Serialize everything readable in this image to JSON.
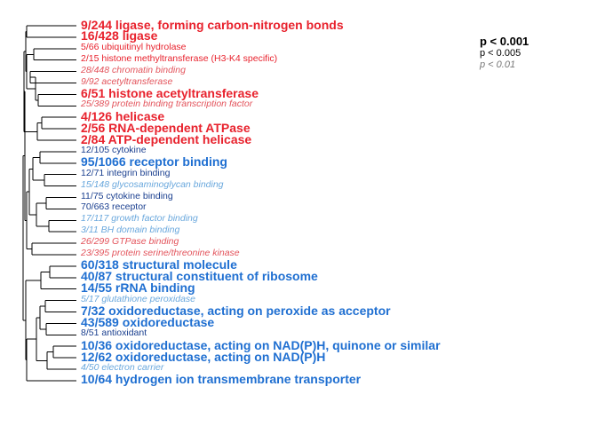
{
  "colors": {
    "red": "#e8222d",
    "red_light": "#e3545c",
    "blue_bold": "#1f6fd1",
    "blue_dark": "#1a3f8f",
    "blue_light": "#6aa8dd"
  },
  "terms": [
    {
      "text": "9/244 ligase, forming carbon-nitrogen bonds",
      "style": "bold",
      "color": "red"
    },
    {
      "text": "16/428 ligase",
      "style": "bold",
      "color": "red"
    },
    {
      "text": "5/66 ubiquitinyl hydrolase",
      "style": "normal",
      "color": "red"
    },
    {
      "text": "2/15 histone methyltransferase (H3-K4 specific)",
      "style": "normal",
      "color": "red"
    },
    {
      "text": "28/448 chromatin binding",
      "style": "italic",
      "color": "red_light"
    },
    {
      "text": "9/92 acetyltransferase",
      "style": "italic",
      "color": "red_light"
    },
    {
      "text": "6/51 histone acetyltransferase",
      "style": "bold",
      "color": "red"
    },
    {
      "text": "25/389 protein binding transcription factor",
      "style": "italic",
      "color": "red_light"
    },
    {
      "text": "4/126 helicase",
      "style": "bold",
      "color": "red"
    },
    {
      "text": "2/56 RNA-dependent ATPase",
      "style": "bold",
      "color": "red"
    },
    {
      "text": "2/84 ATP-dependent helicase",
      "style": "bold",
      "color": "red"
    },
    {
      "text": "12/105 cytokine",
      "style": "normal",
      "color": "blue_dark"
    },
    {
      "text": "95/1066 receptor binding",
      "style": "bold",
      "color": "blue_bold"
    },
    {
      "text": "12/71 integrin binding",
      "style": "normal",
      "color": "blue_dark"
    },
    {
      "text": "15/148 glycosaminoglycan binding",
      "style": "italic",
      "color": "blue_light"
    },
    {
      "text": "11/75 cytokine binding",
      "style": "normal",
      "color": "blue_dark"
    },
    {
      "text": "70/663 receptor",
      "style": "normal",
      "color": "blue_dark"
    },
    {
      "text": "17/117 growth factor binding",
      "style": "italic",
      "color": "blue_light"
    },
    {
      "text": "3/11 BH domain binding",
      "style": "italic",
      "color": "blue_light"
    },
    {
      "text": "26/299 GTPase binding",
      "style": "italic",
      "color": "red_light"
    },
    {
      "text": "23/395 protein serine/threonine kinase",
      "style": "italic",
      "color": "red_light"
    },
    {
      "text": "60/318 structural molecule",
      "style": "bold",
      "color": "blue_bold"
    },
    {
      "text": "40/87 structural constituent of ribosome",
      "style": "bold",
      "color": "blue_bold"
    },
    {
      "text": "14/55 rRNA binding",
      "style": "bold",
      "color": "blue_bold"
    },
    {
      "text": "5/17 glutathione peroxidase",
      "style": "italic",
      "color": "blue_light"
    },
    {
      "text": "7/32 oxidoreductase, acting on peroxide as acceptor",
      "style": "bold",
      "color": "blue_bold"
    },
    {
      "text": "43/589 oxidoreductase",
      "style": "bold",
      "color": "blue_bold"
    },
    {
      "text": "8/51 antioxidant",
      "style": "normal",
      "color": "blue_dark"
    },
    {
      "text": "10/36 oxidoreductase, acting on NAD(P)H, quinone or similar",
      "style": "bold",
      "color": "blue_bold"
    },
    {
      "text": "12/62 oxidoreductase, acting on NAD(P)H",
      "style": "bold",
      "color": "blue_bold"
    },
    {
      "text": "4/50 electron carrier",
      "style": "italic",
      "color": "blue_light"
    },
    {
      "text": "10/64 hydrogen ion transmembrane transporter",
      "style": "bold",
      "color": "blue_bold"
    }
  ],
  "legend": {
    "p1": "p < 0.001",
    "p2": "p < 0.005",
    "p3": "p < 0.01"
  }
}
